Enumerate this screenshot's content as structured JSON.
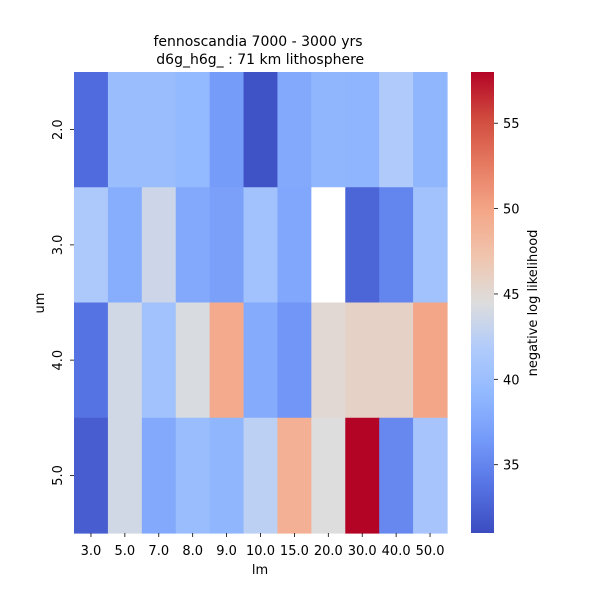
{
  "chart_data": {
    "type": "heatmap",
    "title_line1": "fennoscandia 7000 - 3000 yrs",
    "title_line2": " d6g_h6g_ : 71 km lithosphere",
    "xlabel": "lm",
    "ylabel": "um",
    "x_categories": [
      "3.0",
      "5.0",
      "7.0",
      "8.0",
      "9.0",
      "10.0",
      "15.0",
      "20.0",
      "30.0",
      "40.0",
      "50.0"
    ],
    "y_categories": [
      "2.0",
      "3.0",
      "4.0",
      "5.0"
    ],
    "values": [
      [
        33.2,
        39.8,
        39.8,
        39.3,
        36.7,
        31.5,
        37.8,
        39.0,
        38.8,
        41.8,
        39.0
      ],
      [
        41.5,
        38.2,
        43.5,
        37.8,
        37.0,
        40.5,
        37.6,
        null,
        32.8,
        35.0,
        40.5
      ],
      [
        33.8,
        43.8,
        40.5,
        44.2,
        49.5,
        38.0,
        36.2,
        45.0,
        45.8,
        45.8,
        49.8
      ],
      [
        32.2,
        43.8,
        37.8,
        39.8,
        39.0,
        42.5,
        49.0,
        44.5,
        58.0,
        35.2,
        41.0
      ]
    ],
    "missing_cells": [
      [
        1,
        7
      ]
    ],
    "colormap": "coolwarm",
    "vmin": 31,
    "vmax": 58,
    "colorbar": {
      "label": "negative log likelihood",
      "ticks": [
        35,
        40,
        45,
        50,
        55
      ]
    }
  }
}
